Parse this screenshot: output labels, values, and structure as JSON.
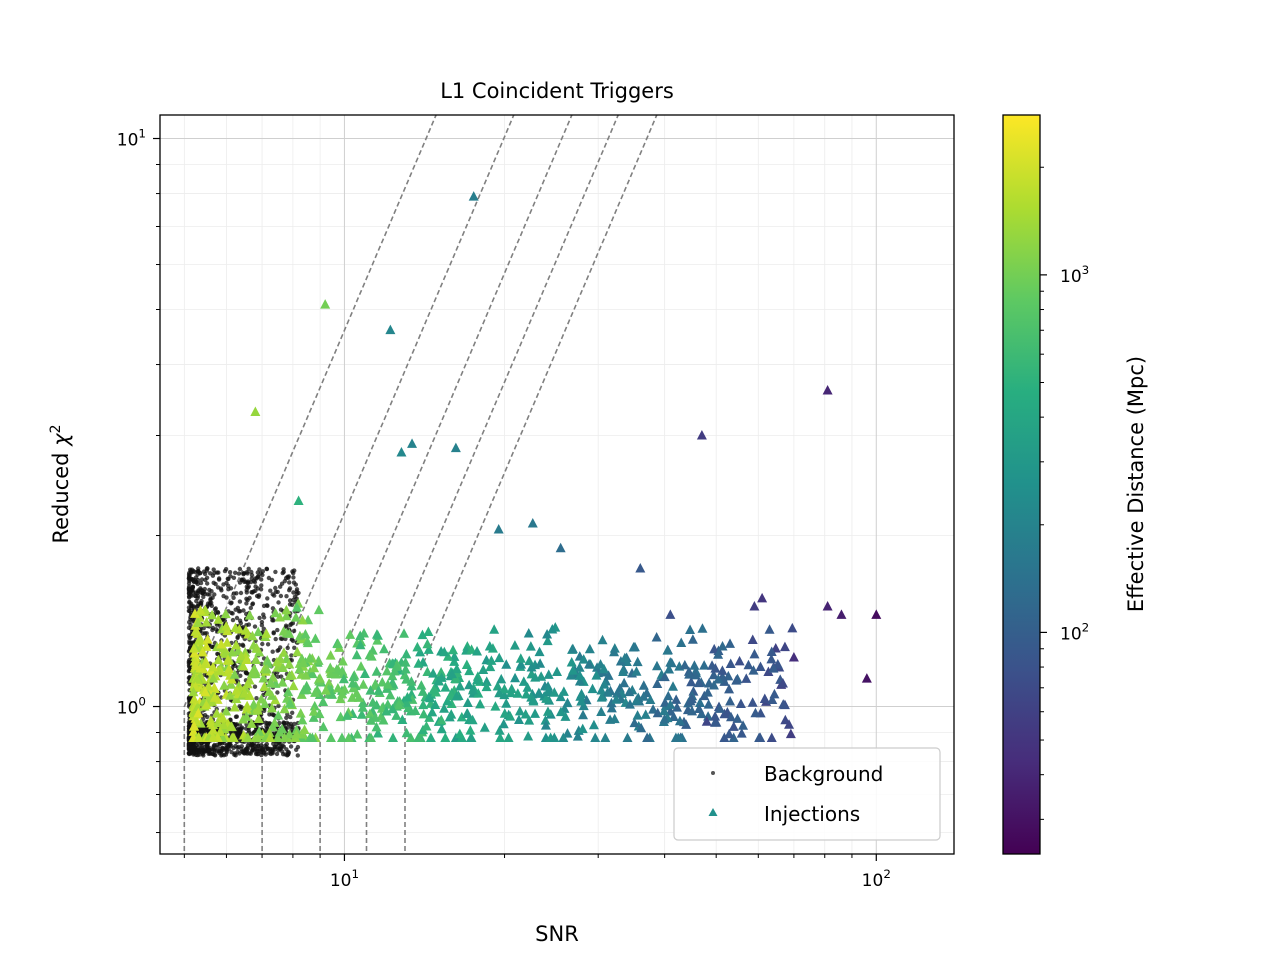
{
  "chart_data": {
    "type": "scatter",
    "title": "L1 Coincident Triggers",
    "xlabel": "SNR",
    "ylabel_text": "Reduced ",
    "ylabel_symbol": "χ",
    "ylabel_sup": "2",
    "x_scale": "log",
    "y_scale": "log",
    "xlim": [
      4.5,
      140
    ],
    "ylim": [
      0.55,
      11
    ],
    "x_ticks": [
      {
        "value": 10,
        "base": "10",
        "exp": "1"
      },
      {
        "value": 100,
        "base": "10",
        "exp": "2"
      }
    ],
    "y_ticks": [
      {
        "value": 1,
        "base": "10",
        "exp": "0"
      },
      {
        "value": 10,
        "base": "10",
        "exp": "1"
      }
    ],
    "grid": "major and minor, both axes",
    "legend": {
      "placement": "lower-right",
      "entries": [
        {
          "label": "Background",
          "marker": "dot",
          "color": "#555555"
        },
        {
          "label": "Injections",
          "marker": "triangle",
          "color": "#21918c"
        }
      ]
    },
    "colorbar": {
      "label": "Effective Distance (Mpc)",
      "scale": "log",
      "range": [
        24,
        2800
      ],
      "colormap": "viridis",
      "ticks": [
        {
          "value": 100,
          "base": "10",
          "exp": "2"
        },
        {
          "value": 1000,
          "base": "10",
          "exp": "3"
        }
      ]
    },
    "threshold_curves": [
      {
        "snr_min": 5.0,
        "reduced_chisq_at_snr_min": 1.0
      },
      {
        "snr_min": 7.0,
        "reduced_chisq_at_snr_min": 1.0
      },
      {
        "snr_min": 9.0,
        "reduced_chisq_at_snr_min": 1.0
      },
      {
        "snr_min": 11.0,
        "reduced_chisq_at_snr_min": 1.0
      },
      {
        "snr_min": 13.0,
        "reduced_chisq_at_snr_min": 1.0
      }
    ],
    "series": [
      {
        "name": "Background",
        "color": "#555555",
        "x_range": [
          5.1,
          8.2
        ],
        "y_range": [
          0.8,
          1.8
        ],
        "note_count": 1500
      },
      {
        "name": "Injections",
        "points": [
          {
            "x": 17.5,
            "y": 7.9,
            "d": 180
          },
          {
            "x": 9.2,
            "y": 5.1,
            "d": 1000
          },
          {
            "x": 12.2,
            "y": 4.6,
            "d": 210
          },
          {
            "x": 6.8,
            "y": 3.3,
            "d": 1300
          },
          {
            "x": 81,
            "y": 3.6,
            "d": 40
          },
          {
            "x": 47,
            "y": 3.0,
            "d": 55
          },
          {
            "x": 12.8,
            "y": 2.8,
            "d": 220
          },
          {
            "x": 13.4,
            "y": 2.9,
            "d": 200
          },
          {
            "x": 16.2,
            "y": 2.85,
            "d": 190
          },
          {
            "x": 8.2,
            "y": 2.3,
            "d": 500
          },
          {
            "x": 19.5,
            "y": 2.05,
            "d": 170
          },
          {
            "x": 22.6,
            "y": 2.1,
            "d": 160
          },
          {
            "x": 25.5,
            "y": 1.9,
            "d": 130
          },
          {
            "x": 100,
            "y": 1.45,
            "d": 28
          },
          {
            "x": 96,
            "y": 1.12,
            "d": 30
          },
          {
            "x": 81,
            "y": 1.5,
            "d": 38
          },
          {
            "x": 86,
            "y": 1.45,
            "d": 35
          },
          {
            "x": 61,
            "y": 1.55,
            "d": 50
          },
          {
            "x": 59,
            "y": 1.5,
            "d": 55
          },
          {
            "x": 48,
            "y": 0.94,
            "d": 65
          },
          {
            "x": 70,
            "y": 1.22,
            "d": 45
          },
          {
            "x": 41,
            "y": 1.45,
            "d": 75
          },
          {
            "x": 36,
            "y": 1.75,
            "d": 90
          }
        ],
        "cluster": {
          "x_range": [
            5.2,
            70
          ],
          "y_range": [
            0.88,
            1.8
          ],
          "note_count": 900
        }
      }
    ]
  }
}
